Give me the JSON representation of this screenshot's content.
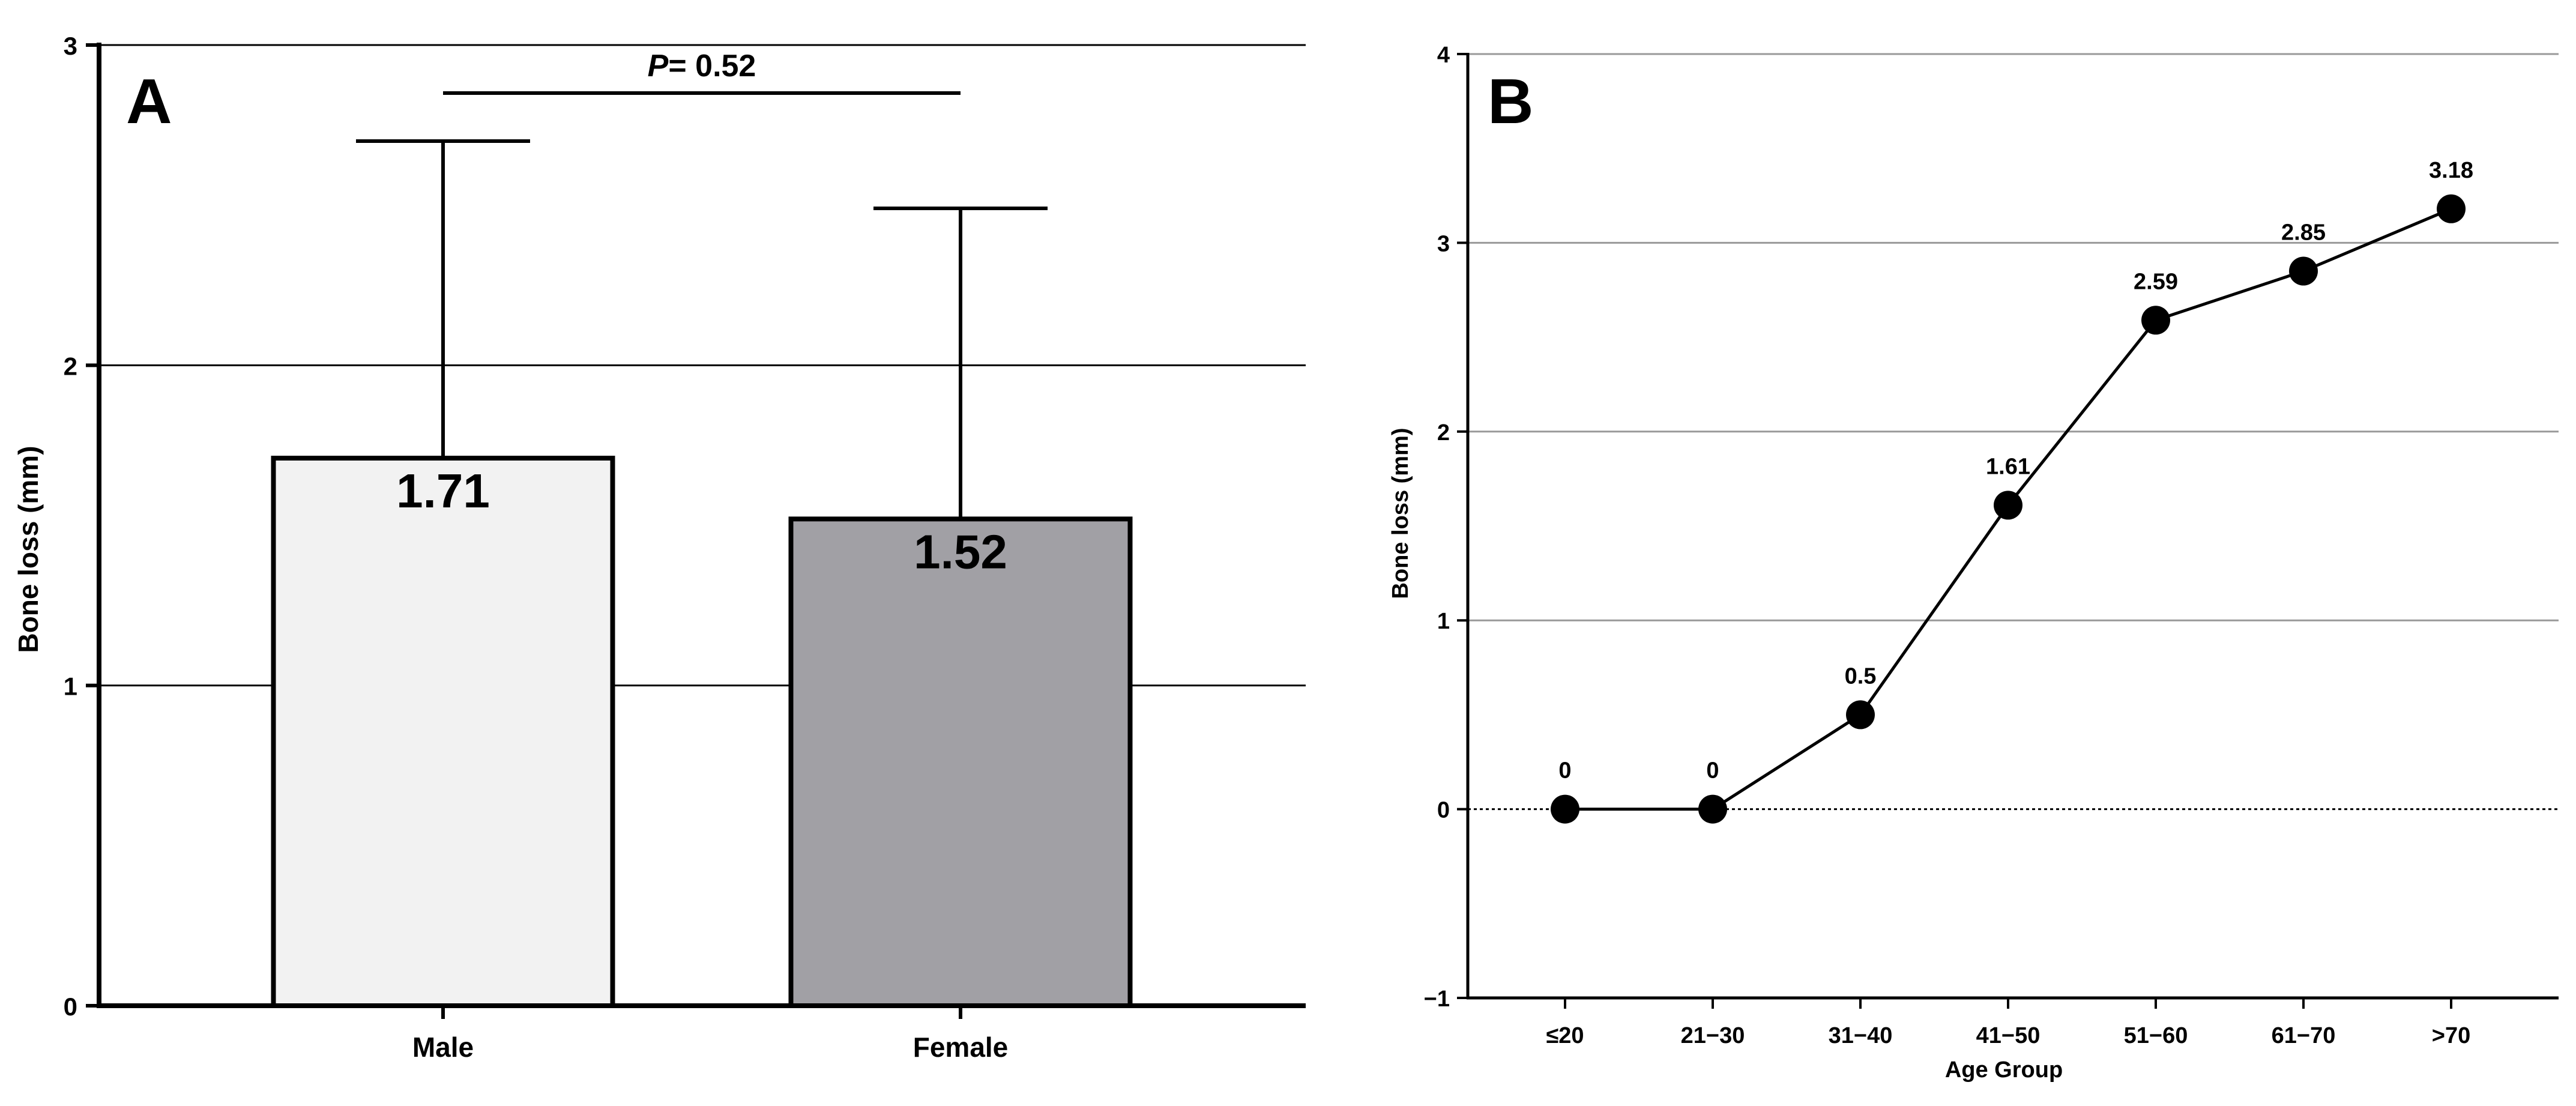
{
  "chart_data": [
    {
      "panel": "A",
      "type": "bar",
      "categories": [
        "Male",
        "Female"
      ],
      "values": [
        1.71,
        1.52
      ],
      "error_upper": [
        2.7,
        2.49
      ],
      "value_labels": [
        "1.71",
        "1.52"
      ],
      "colors": [
        "#f2f2f2",
        "#a1a0a5"
      ],
      "ylabel": "Bone loss (mm)",
      "xlabel": "",
      "ylim": [
        0,
        3
      ],
      "yticks": [
        "0",
        "1",
        "2",
        "3"
      ],
      "grid": true,
      "significance": {
        "italic": "P",
        "rest": "= 0.52",
        "between": [
          "Male",
          "Female"
        ],
        "y": 2.85
      }
    },
    {
      "panel": "B",
      "type": "line",
      "categories": [
        "≤20",
        "21−30",
        "31−40",
        "41−50",
        "51−60",
        "61−70",
        ">70"
      ],
      "values": [
        0,
        0,
        0.5,
        1.61,
        2.59,
        2.85,
        3.18
      ],
      "value_labels": [
        "0",
        "0",
        "0.5",
        "1.61",
        "2.59",
        "2.85",
        "3.18"
      ],
      "ylabel": "Bone loss (mm)",
      "xlabel": "Age Group",
      "ylim": [
        -1,
        4
      ],
      "yticks": [
        "−1",
        "0",
        "1",
        "2",
        "3",
        "4"
      ],
      "grid": true,
      "zero_line": "dotted"
    }
  ],
  "colors": {
    "axis": "#000000",
    "grid_a": "#000000",
    "grid_b": "#999999",
    "marker": "#000000"
  }
}
